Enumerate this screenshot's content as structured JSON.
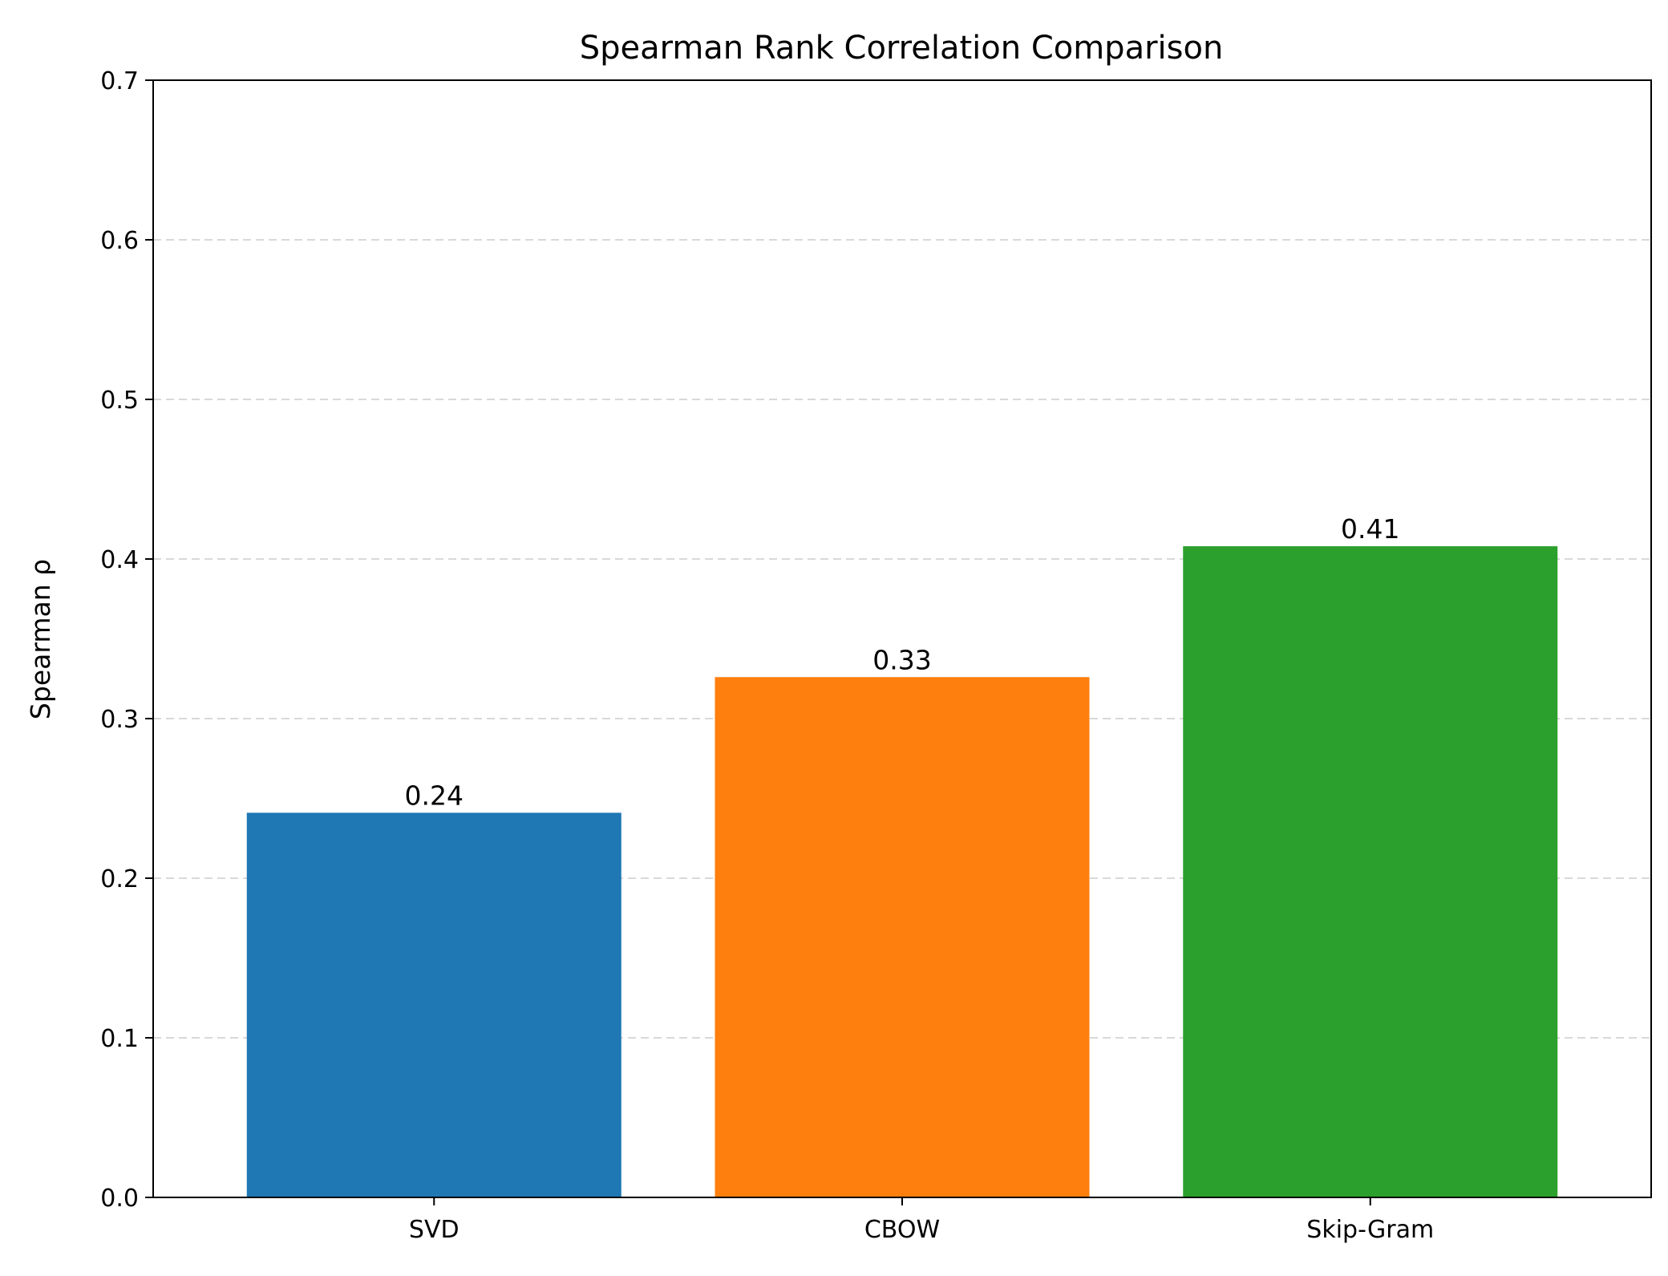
{
  "chart_data": {
    "type": "bar",
    "title": "Spearman Rank Correlation Comparison",
    "xlabel": "",
    "ylabel": "Spearman ρ",
    "categories": [
      "SVD",
      "CBOW",
      "Skip-Gram"
    ],
    "values": [
      0.241,
      0.326,
      0.408
    ],
    "value_labels": [
      "0.24",
      "0.33",
      "0.41"
    ],
    "colors": [
      "#1f77b4",
      "#ff7f0e",
      "#2ca02c"
    ],
    "ylim": [
      0,
      0.7
    ],
    "yticks": [
      0.0,
      0.1,
      0.2,
      0.3,
      0.4,
      0.5,
      0.6,
      0.7
    ],
    "ytick_labels": [
      "0.0",
      "0.1",
      "0.2",
      "0.3",
      "0.4",
      "0.5",
      "0.6",
      "0.7"
    ],
    "grid": "y-axis dashed",
    "legend": "none"
  }
}
